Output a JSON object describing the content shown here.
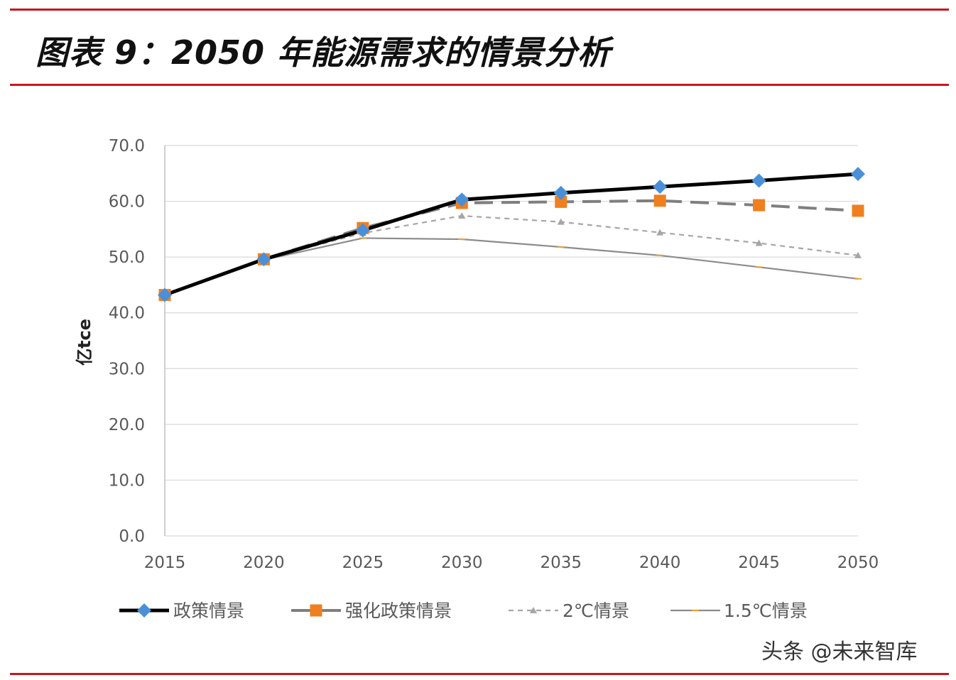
{
  "title": "图表 9：2050 年能源需求的情景分析",
  "watermark": "头条 @未来智库",
  "chart_data": {
    "type": "line",
    "ylabel": "亿tce",
    "xlabel": "",
    "ylim": [
      0,
      70
    ],
    "y_ticks": [
      "0.0",
      "10.0",
      "20.0",
      "30.0",
      "40.0",
      "50.0",
      "60.0",
      "70.0"
    ],
    "x": [
      "2015",
      "2020",
      "2025",
      "2030",
      "2035",
      "2040",
      "2045",
      "2050"
    ],
    "grid": true,
    "legend_position": "bottom",
    "series": [
      {
        "name": "政策情景",
        "values": [
          43.2,
          49.6,
          54.8,
          60.3,
          61.5,
          62.6,
          63.7,
          64.9
        ],
        "color": "#000000",
        "marker": "diamond",
        "marker_color": "#4a90d9",
        "dash": "solid"
      },
      {
        "name": "强化政策情景",
        "values": [
          43.2,
          49.6,
          55.2,
          59.7,
          59.9,
          60.1,
          59.3,
          58.3
        ],
        "color": "#7f7f7f",
        "marker": "square",
        "marker_color": "#f07f1f",
        "dash": "long-dash"
      },
      {
        "name": "2℃情景",
        "values": [
          43.2,
          49.6,
          54.3,
          57.4,
          56.3,
          54.4,
          52.5,
          50.3
        ],
        "color": "#a6a6a6",
        "marker": "triangle",
        "marker_color": "#a6a6a6",
        "dash": "short-dash"
      },
      {
        "name": "1.5℃情景",
        "values": [
          43.2,
          49.5,
          53.4,
          53.2,
          51.8,
          50.3,
          48.2,
          46.1
        ],
        "color": "#8c8c8c",
        "marker": "dash",
        "marker_color": "#e6a23c",
        "dash": "solid"
      }
    ]
  }
}
